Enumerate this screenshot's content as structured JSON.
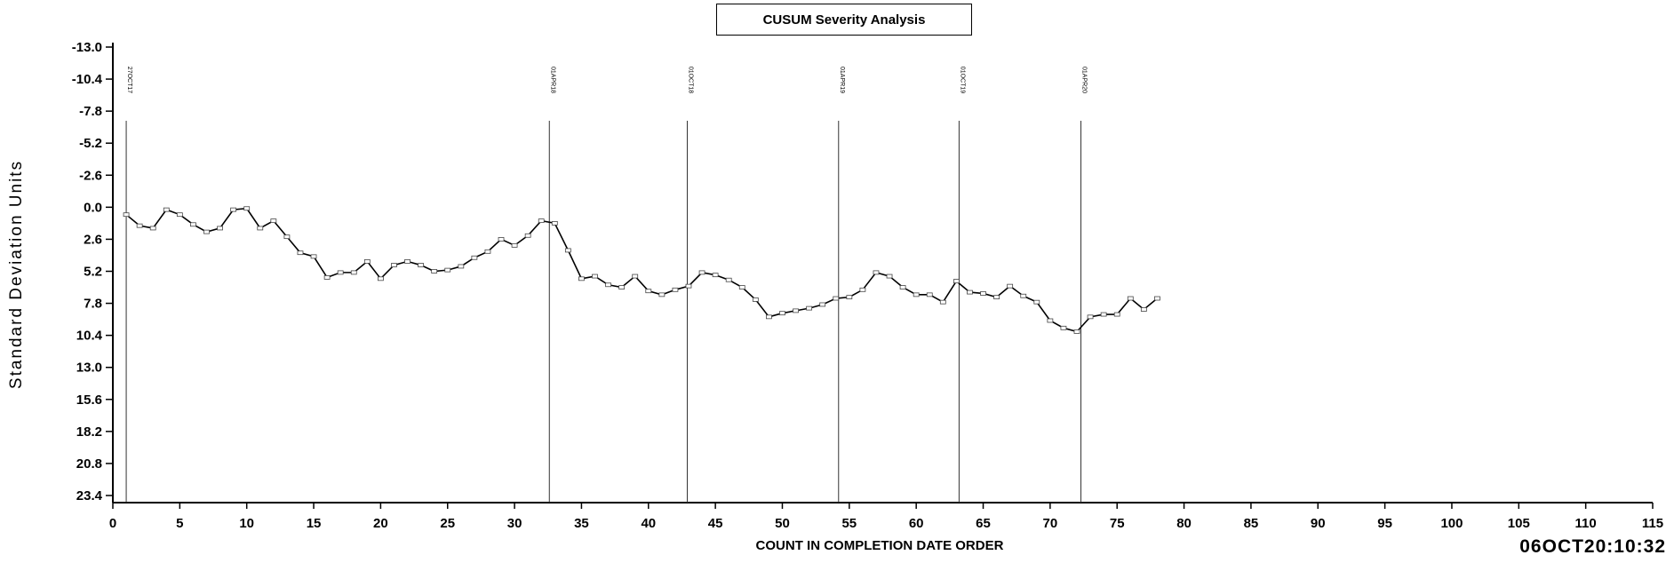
{
  "chart_data": {
    "type": "line",
    "title": "CUSUM Severity Analysis",
    "xlabel": "COUNT IN COMPLETION DATE ORDER",
    "ylabel": "Standard Deviation Units",
    "timestamp": "06OCT20:10:32",
    "xlim": [
      0,
      115
    ],
    "ylim": [
      -13.0,
      23.4
    ],
    "y_inverted": true,
    "x_ticks": [
      "0",
      "5",
      "10",
      "15",
      "20",
      "25",
      "30",
      "35",
      "40",
      "45",
      "50",
      "55",
      "60",
      "65",
      "70",
      "75",
      "80",
      "85",
      "90",
      "95",
      "100",
      "105",
      "110",
      "115"
    ],
    "y_ticks": [
      "-13.0",
      "-10.4",
      "-7.8",
      "-5.2",
      "-2.6",
      "0.0",
      "2.6",
      "5.2",
      "7.8",
      "10.4",
      "13.0",
      "15.6",
      "18.2",
      "20.8",
      "23.4"
    ],
    "event_lines": [
      {
        "x": 1,
        "label": "27OCT17"
      },
      {
        "x": 32.6,
        "label": "01APR18"
      },
      {
        "x": 42.9,
        "label": "01OCT18"
      },
      {
        "x": 54.2,
        "label": "01APR19"
      },
      {
        "x": 63.2,
        "label": "01OCT19"
      },
      {
        "x": 72.3,
        "label": "01APR20"
      }
    ],
    "series": [
      {
        "x": [
          1,
          2,
          3,
          4,
          5,
          6,
          7,
          8,
          9,
          10,
          11,
          12,
          13,
          14,
          15,
          16,
          17,
          18,
          19,
          20,
          21,
          22,
          23,
          24,
          25,
          26,
          27,
          28,
          29,
          30,
          31,
          32,
          33,
          34,
          35,
          36,
          37,
          38,
          39,
          40,
          41,
          42,
          43,
          44,
          45,
          46,
          47,
          48,
          49,
          50,
          51,
          52,
          53,
          54,
          55,
          56,
          57,
          58,
          59,
          60,
          61,
          62,
          63,
          64,
          65,
          66,
          67,
          68,
          69,
          70,
          71,
          72,
          73,
          74,
          75,
          76,
          77,
          78
        ],
        "y": [
          0.6,
          1.5,
          1.7,
          0.2,
          0.6,
          1.4,
          2.0,
          1.7,
          0.2,
          0.1,
          1.7,
          1.1,
          2.4,
          3.7,
          4.0,
          5.7,
          5.3,
          5.3,
          4.4,
          5.8,
          4.7,
          4.4,
          4.7,
          5.2,
          5.1,
          4.8,
          4.1,
          3.6,
          2.6,
          3.1,
          2.3,
          1.1,
          1.3,
          3.5,
          5.8,
          5.6,
          6.3,
          6.5,
          5.6,
          6.8,
          7.1,
          6.7,
          6.4,
          5.3,
          5.5,
          5.9,
          6.5,
          7.5,
          8.9,
          8.6,
          8.4,
          8.2,
          7.9,
          7.4,
          7.3,
          6.7,
          5.3,
          5.6,
          6.5,
          7.1,
          7.1,
          7.7,
          6.0,
          6.9,
          7.0,
          7.3,
          6.4,
          7.2,
          7.7,
          9.2,
          9.8,
          10.1,
          8.9,
          8.7,
          8.7,
          7.4,
          8.3,
          7.4
        ]
      }
    ]
  }
}
